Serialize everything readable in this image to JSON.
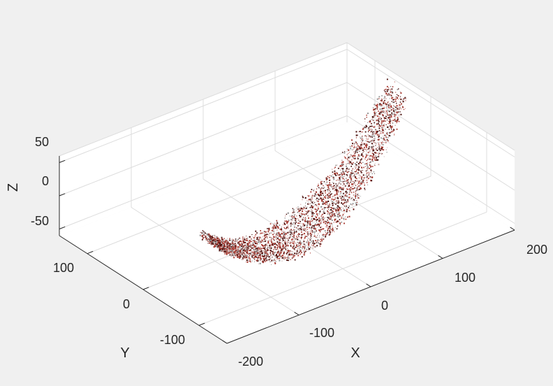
{
  "chart_data": {
    "type": "scatter",
    "title": "",
    "subtitle": "",
    "xlabel": "X",
    "ylabel": "Y",
    "zlabel": "Z",
    "xlim": [
      -200,
      200
    ],
    "ylim": [
      -150,
      150
    ],
    "zlim": [
      -60,
      60
    ],
    "x_ticks": [
      -200,
      -100,
      0,
      100,
      200
    ],
    "y_ticks": [
      -100,
      0,
      100
    ],
    "z_ticks": [
      -50,
      0,
      50
    ],
    "x_tick_labels": [
      "-200",
      "-100",
      "0",
      "100",
      "200"
    ],
    "y_tick_labels": [
      "-100",
      "0",
      "100"
    ],
    "z_tick_labels": [
      "-50",
      "0",
      "50"
    ],
    "grid": true,
    "box": false,
    "view": "3d",
    "colors": {
      "figure_bg": "#f0f0f0",
      "pane": "#ffffff",
      "grid": "#dcdcdc",
      "axis": "#262626",
      "points_main": "#a8382f",
      "points_dark": "#4a0f0c",
      "points_light": "#c9a9a6",
      "points_gray": "#8f8f8f"
    },
    "point_cloud": {
      "description_shape": "curved valley surface",
      "x_range": [
        -170,
        190
      ],
      "y_range": [
        -120,
        90
      ],
      "z_range": [
        -55,
        50
      ]
    }
  }
}
